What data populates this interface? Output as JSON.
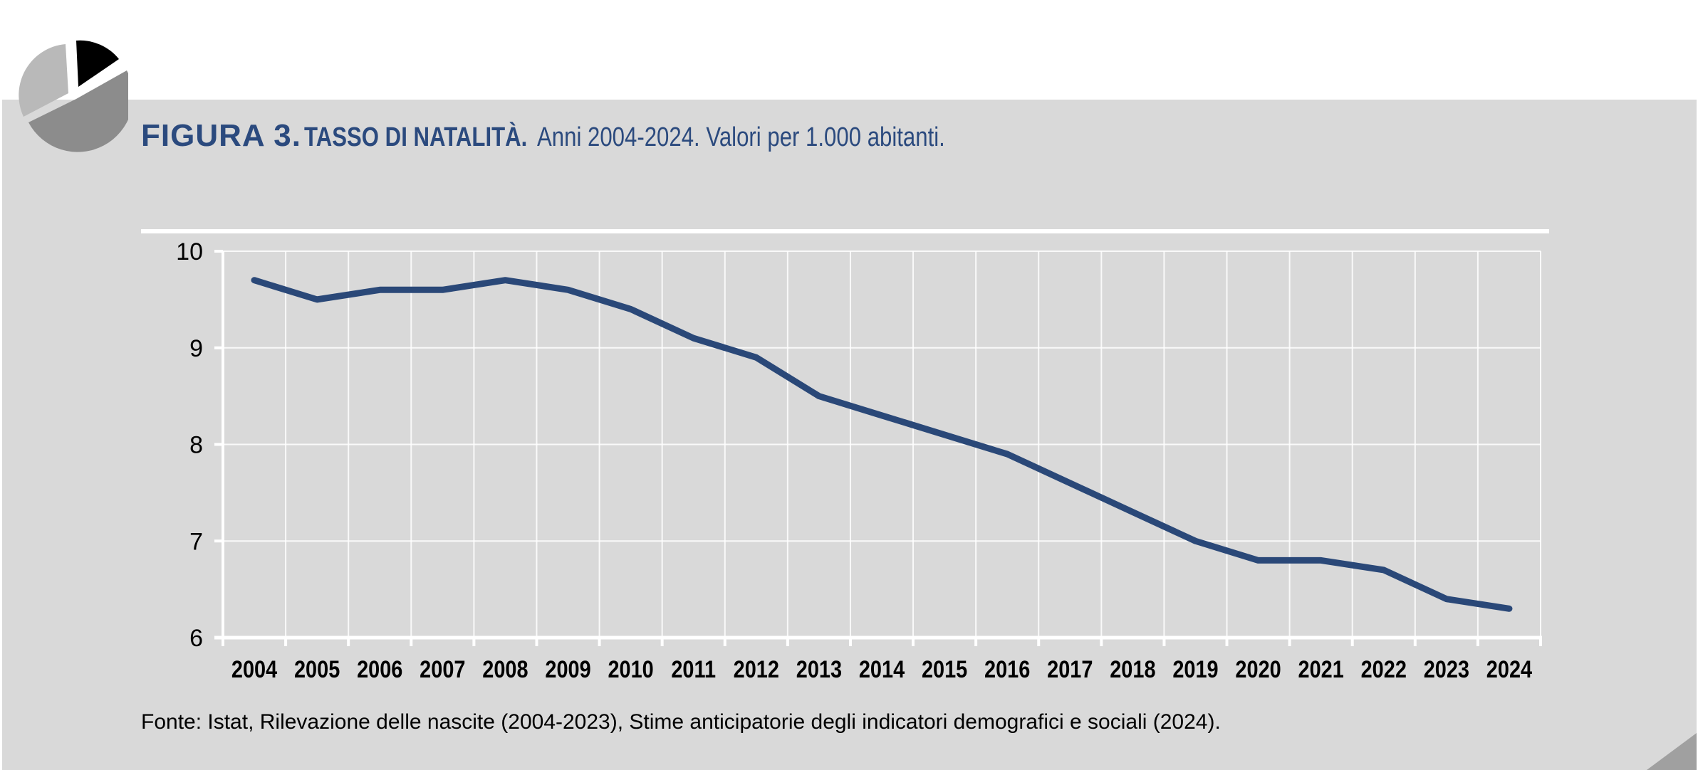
{
  "header": {
    "figure_label": "FIGURA 3.",
    "figure_name": "TASSO DI NATALITÀ.",
    "figure_subtitle": "Anni 2004-2024. Valori per 1.000 abitanti."
  },
  "source": "Fonte: Istat, Rilevazione delle nascite (2004-2023), Stime anticipatorie degli indicatori demografici e sociali (2024).",
  "colors": {
    "background": "#D9D9D9",
    "title": "#2B4A7E",
    "line": "#2A4878",
    "grid": "#FFFFFF"
  },
  "logo_icon": "pie-chart-icon",
  "chart_data": {
    "type": "line",
    "title": "FIGURA 3. TASSO DI NATALITÀ. Anni 2004-2024. Valori per 1.000 abitanti.",
    "xlabel": "",
    "ylabel": "",
    "categories": [
      "2004",
      "2005",
      "2006",
      "2007",
      "2008",
      "2009",
      "2010",
      "2011",
      "2012",
      "2013",
      "2014",
      "2015",
      "2016",
      "2017",
      "2018",
      "2019",
      "2020",
      "2021",
      "2022",
      "2023",
      "2024"
    ],
    "series": [
      {
        "name": "Tasso di natalità",
        "values": [
          9.7,
          9.5,
          9.6,
          9.6,
          9.7,
          9.6,
          9.4,
          9.1,
          8.9,
          8.5,
          8.3,
          8.1,
          7.9,
          7.6,
          7.3,
          7.0,
          6.8,
          6.8,
          6.7,
          6.4,
          6.3
        ]
      }
    ],
    "ylim": [
      6,
      10
    ],
    "yticks": [
      "6",
      "7",
      "8",
      "9",
      "10"
    ],
    "grid": true,
    "legend": "none"
  }
}
